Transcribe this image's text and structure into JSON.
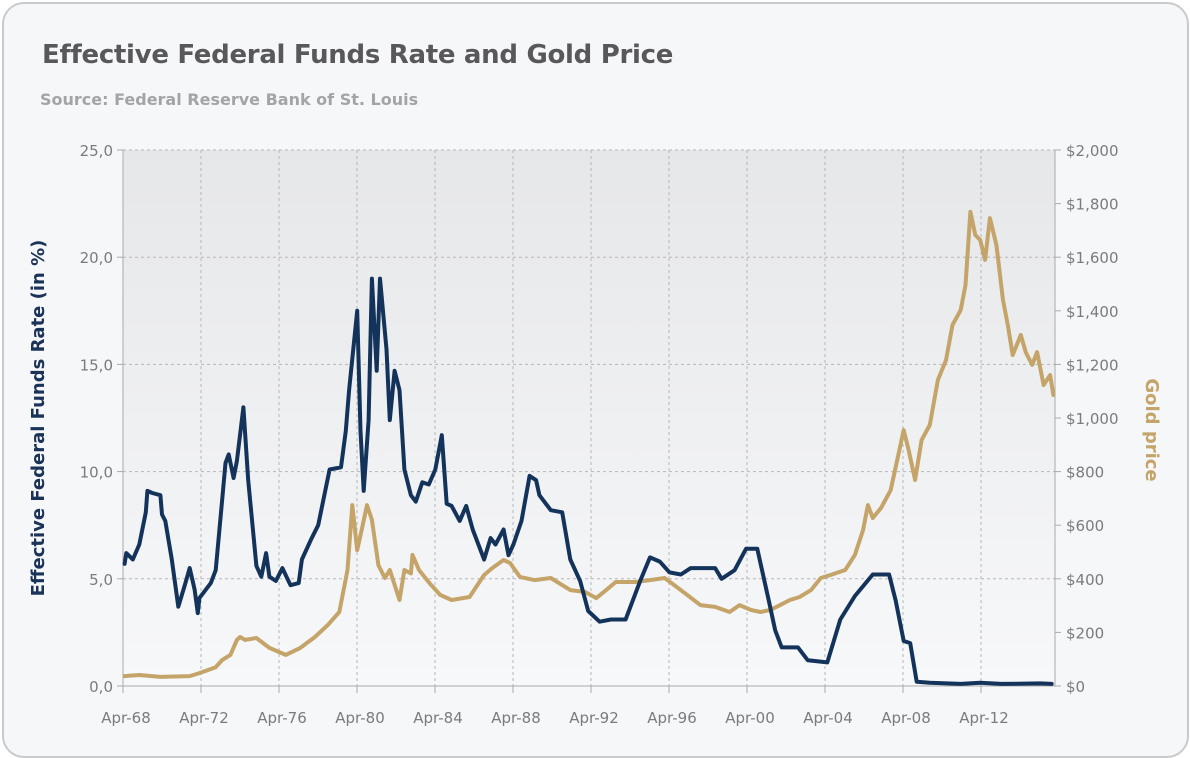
{
  "title": "Effective Federal Funds Rate and Gold Price",
  "subtitle": "Source: Federal Reserve Bank of St. Louis",
  "chart_data": {
    "type": "line",
    "title": "Effective Federal Funds Rate and Gold Price",
    "subtitle": "Source: Federal Reserve Bank of St. Louis",
    "xlabel": "",
    "ylabel": "Effective Federal Funds Rate (in %)",
    "y2label": "Gold price",
    "xlim": [
      "1968-04",
      "2016-01"
    ],
    "ylim": [
      0,
      25
    ],
    "y2lim": [
      0,
      2000
    ],
    "grid": true,
    "x_ticks": [
      "Apr-68",
      "Apr-72",
      "Apr-76",
      "Apr-80",
      "Apr-84",
      "Apr-88",
      "Apr-92",
      "Apr-96",
      "Apr-00",
      "Apr-04",
      "Apr-08",
      "Apr-12"
    ],
    "y_ticks": [
      "0,0",
      "5,0",
      "10,0",
      "15,0",
      "20,0",
      "25,0"
    ],
    "y2_ticks": [
      "$0",
      "$200",
      "$400",
      "$600",
      "$800",
      "$1,000",
      "$1,200",
      "$1,400",
      "$1,600",
      "$1,800",
      "$2,000"
    ],
    "colors": {
      "rate": "#14335a",
      "gold": "#c4a468"
    },
    "series": [
      {
        "axis": "left",
        "points": [
          [
            "1968-05",
            5.7
          ],
          [
            "1968-06",
            6.2
          ],
          [
            "1968-10",
            5.9
          ],
          [
            "1969-02",
            6.6
          ],
          [
            "1969-06",
            8.1
          ],
          [
            "1969-07",
            9.1
          ],
          [
            "1969-10",
            9.0
          ],
          [
            "1970-03",
            8.9
          ],
          [
            "1970-04",
            8.0
          ],
          [
            "1970-06",
            7.7
          ],
          [
            "1970-10",
            5.9
          ],
          [
            "1971-02",
            3.7
          ],
          [
            "1971-06",
            4.7
          ],
          [
            "1971-09",
            5.5
          ],
          [
            "1971-12",
            4.5
          ],
          [
            "1972-02",
            3.4
          ],
          [
            "1972-03",
            4.1
          ],
          [
            "1972-10",
            4.8
          ],
          [
            "1973-01",
            5.4
          ],
          [
            "1973-05",
            8.7
          ],
          [
            "1973-07",
            10.4
          ],
          [
            "1973-09",
            10.8
          ],
          [
            "1973-12",
            9.7
          ],
          [
            "1974-02",
            10.5
          ],
          [
            "1974-06",
            13.0
          ],
          [
            "1974-09",
            9.6
          ],
          [
            "1975-02",
            5.6
          ],
          [
            "1975-05",
            5.1
          ],
          [
            "1975-08",
            6.2
          ],
          [
            "1975-10",
            5.1
          ],
          [
            "1976-02",
            4.9
          ],
          [
            "1976-06",
            5.5
          ],
          [
            "1976-11",
            4.7
          ],
          [
            "1977-04",
            4.8
          ],
          [
            "1977-06",
            5.9
          ],
          [
            "1977-12",
            6.9
          ],
          [
            "1978-04",
            7.5
          ],
          [
            "1978-11",
            10.1
          ],
          [
            "1979-06",
            10.2
          ],
          [
            "1979-09",
            11.9
          ],
          [
            "1979-11",
            13.8
          ],
          [
            "1980-04",
            17.5
          ],
          [
            "1980-06",
            11.9
          ],
          [
            "1980-08",
            9.1
          ],
          [
            "1980-11",
            12.4
          ],
          [
            "1981-01",
            19.0
          ],
          [
            "1981-04",
            14.7
          ],
          [
            "1981-06",
            19.0
          ],
          [
            "1981-10",
            15.7
          ],
          [
            "1981-12",
            12.4
          ],
          [
            "1982-03",
            14.7
          ],
          [
            "1982-06",
            13.8
          ],
          [
            "1982-09",
            10.1
          ],
          [
            "1983-01",
            8.9
          ],
          [
            "1983-04",
            8.6
          ],
          [
            "1983-08",
            9.5
          ],
          [
            "1983-12",
            9.4
          ],
          [
            "1984-04",
            10.1
          ],
          [
            "1984-08",
            11.7
          ],
          [
            "1984-11",
            8.5
          ],
          [
            "1985-02",
            8.4
          ],
          [
            "1985-07",
            7.7
          ],
          [
            "1985-11",
            8.4
          ],
          [
            "1986-03",
            7.3
          ],
          [
            "1986-10",
            5.9
          ],
          [
            "1987-02",
            6.9
          ],
          [
            "1987-05",
            6.6
          ],
          [
            "1987-10",
            7.3
          ],
          [
            "1988-01",
            6.1
          ],
          [
            "1988-04",
            6.6
          ],
          [
            "1988-09",
            7.7
          ],
          [
            "1989-02",
            9.8
          ],
          [
            "1989-06",
            9.6
          ],
          [
            "1989-08",
            8.9
          ],
          [
            "1990-03",
            8.2
          ],
          [
            "1990-10",
            8.1
          ],
          [
            "1991-03",
            5.9
          ],
          [
            "1991-09",
            4.9
          ],
          [
            "1992-02",
            3.5
          ],
          [
            "1992-09",
            3.0
          ],
          [
            "1993-04",
            3.1
          ],
          [
            "1994-01",
            3.1
          ],
          [
            "1994-10",
            4.9
          ],
          [
            "1995-04",
            6.0
          ],
          [
            "1995-10",
            5.8
          ],
          [
            "1996-04",
            5.3
          ],
          [
            "1996-11",
            5.2
          ],
          [
            "1997-05",
            5.5
          ],
          [
            "1997-11",
            5.5
          ],
          [
            "1998-08",
            5.5
          ],
          [
            "1998-12",
            5.0
          ],
          [
            "1999-08",
            5.4
          ],
          [
            "2000-03",
            6.4
          ],
          [
            "2000-10",
            6.4
          ],
          [
            "2001-05",
            4.0
          ],
          [
            "2001-09",
            2.6
          ],
          [
            "2002-01",
            1.8
          ],
          [
            "2002-11",
            1.8
          ],
          [
            "2003-05",
            1.2
          ],
          [
            "2004-05",
            1.1
          ],
          [
            "2005-01",
            3.1
          ],
          [
            "2005-10",
            4.2
          ],
          [
            "2006-09",
            5.2
          ],
          [
            "2007-07",
            5.2
          ],
          [
            "2007-11",
            4.0
          ],
          [
            "2008-04",
            2.1
          ],
          [
            "2008-08",
            2.0
          ],
          [
            "2008-12",
            0.2
          ],
          [
            "2009-08",
            0.15
          ],
          [
            "2011-03",
            0.1
          ],
          [
            "2012-03",
            0.15
          ],
          [
            "2013-04",
            0.1
          ],
          [
            "2015-04",
            0.12
          ],
          [
            "2015-11",
            0.1
          ]
        ]
      },
      {
        "axis": "right",
        "points": [
          [
            "1968-05",
            37
          ],
          [
            "1969-02",
            41
          ],
          [
            "1970-03",
            34
          ],
          [
            "1971-09",
            37
          ],
          [
            "1972-03",
            48
          ],
          [
            "1973-01",
            70
          ],
          [
            "1973-05",
            97
          ],
          [
            "1973-10",
            116
          ],
          [
            "1974-02",
            172
          ],
          [
            "1974-04",
            183
          ],
          [
            "1974-07",
            172
          ],
          [
            "1975-02",
            179
          ],
          [
            "1975-10",
            142
          ],
          [
            "1976-08",
            116
          ],
          [
            "1977-05",
            142
          ],
          [
            "1978-02",
            183
          ],
          [
            "1978-10",
            228
          ],
          [
            "1979-05",
            276
          ],
          [
            "1979-10",
            433
          ],
          [
            "1980-01",
            675
          ],
          [
            "1980-04",
            507
          ],
          [
            "1980-07",
            590
          ],
          [
            "1980-10",
            675
          ],
          [
            "1981-01",
            620
          ],
          [
            "1981-05",
            451
          ],
          [
            "1981-09",
            403
          ],
          [
            "1981-12",
            433
          ],
          [
            "1982-06",
            321
          ],
          [
            "1982-09",
            433
          ],
          [
            "1983-01",
            420
          ],
          [
            "1983-02",
            489
          ],
          [
            "1983-06",
            433
          ],
          [
            "1984-01",
            380
          ],
          [
            "1984-07",
            340
          ],
          [
            "1985-02",
            321
          ],
          [
            "1986-01",
            332
          ],
          [
            "1986-10",
            414
          ],
          [
            "1987-03",
            440
          ],
          [
            "1987-10",
            470
          ],
          [
            "1988-02",
            459
          ],
          [
            "1988-08",
            407
          ],
          [
            "1989-05",
            395
          ],
          [
            "1990-03",
            403
          ],
          [
            "1991-03",
            358
          ],
          [
            "1991-12",
            351
          ],
          [
            "1992-07",
            328
          ],
          [
            "1993-01",
            358
          ],
          [
            "1993-07",
            388
          ],
          [
            "1994-07",
            388
          ],
          [
            "1995-04",
            395
          ],
          [
            "1996-01",
            403
          ],
          [
            "1996-11",
            358
          ],
          [
            "1997-11",
            302
          ],
          [
            "1998-08",
            295
          ],
          [
            "1999-05",
            276
          ],
          [
            "1999-11",
            302
          ],
          [
            "2000-06",
            284
          ],
          [
            "2000-12",
            276
          ],
          [
            "2001-06",
            284
          ],
          [
            "2001-12",
            302
          ],
          [
            "2002-06",
            321
          ],
          [
            "2002-12",
            332
          ],
          [
            "2003-07",
            358
          ],
          [
            "2004-01",
            403
          ],
          [
            "2004-07",
            414
          ],
          [
            "2005-04",
            433
          ],
          [
            "2005-10",
            489
          ],
          [
            "2006-03",
            582
          ],
          [
            "2006-06",
            675
          ],
          [
            "2006-09",
            627
          ],
          [
            "2007-02",
            664
          ],
          [
            "2007-08",
            731
          ],
          [
            "2007-12",
            843
          ],
          [
            "2008-04",
            955
          ],
          [
            "2008-07",
            881
          ],
          [
            "2008-11",
            769
          ],
          [
            "2009-03",
            918
          ],
          [
            "2009-08",
            974
          ],
          [
            "2010-01",
            1142
          ],
          [
            "2010-06",
            1216
          ],
          [
            "2010-10",
            1347
          ],
          [
            "2011-03",
            1403
          ],
          [
            "2011-06",
            1496
          ],
          [
            "2011-09",
            1769
          ],
          [
            "2011-12",
            1683
          ],
          [
            "2012-03",
            1664
          ],
          [
            "2012-06",
            1590
          ],
          [
            "2012-09",
            1746
          ],
          [
            "2013-01",
            1646
          ],
          [
            "2013-05",
            1440
          ],
          [
            "2013-08",
            1347
          ],
          [
            "2013-11",
            1235
          ],
          [
            "2014-04",
            1310
          ],
          [
            "2014-07",
            1246
          ],
          [
            "2014-11",
            1198
          ],
          [
            "2015-02",
            1246
          ],
          [
            "2015-06",
            1123
          ],
          [
            "2015-10",
            1160
          ],
          [
            "2015-12",
            1086
          ]
        ]
      }
    ]
  }
}
